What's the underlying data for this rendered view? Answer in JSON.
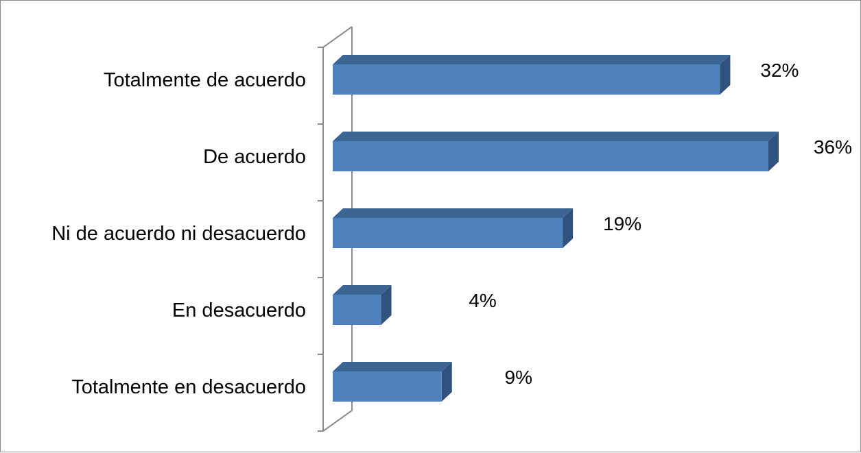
{
  "chart_data": {
    "type": "bar",
    "orientation": "horizontal",
    "style": "3d",
    "categories": [
      "Totalmente de acuerdo",
      "De acuerdo",
      "Ni de acuerdo ni desacuerdo",
      "En desacuerdo",
      "Totalmente en desacuerdo"
    ],
    "values": [
      32,
      36,
      19,
      4,
      9
    ],
    "value_labels": [
      "32%",
      "36%",
      "19%",
      "4%",
      "9%"
    ],
    "unit": "%",
    "xlim": [
      0,
      36
    ],
    "legend": "none",
    "grid": false,
    "colors": {
      "bar_front": "#4f81bd",
      "bar_top": "#3d6594",
      "bar_side": "#2f537e",
      "axis": "#8c8c8c"
    }
  }
}
